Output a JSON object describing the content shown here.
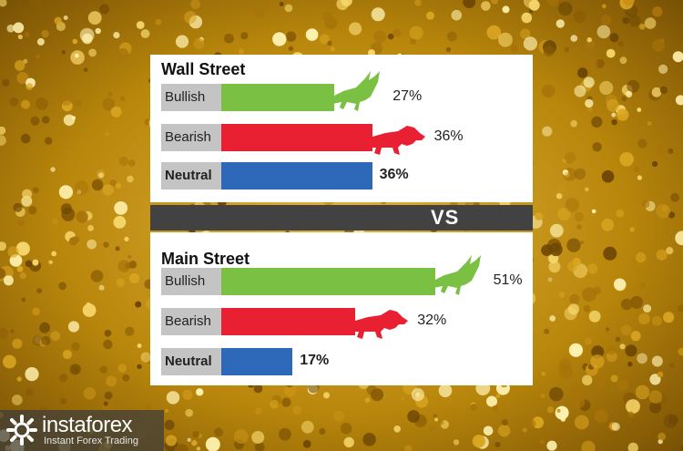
{
  "chart_data": [
    {
      "type": "bar",
      "title": "Wall Street",
      "categories": [
        "Bullish",
        "Bearish",
        "Neutral"
      ],
      "values": [
        27,
        36,
        36
      ],
      "value_labels": [
        "27%",
        "36%",
        "36%"
      ],
      "unit": "%",
      "colors": [
        "#7ac143",
        "#e82032",
        "#2e68b8"
      ]
    },
    {
      "type": "bar",
      "title": "Main Street",
      "categories": [
        "Bullish",
        "Bearish",
        "Neutral"
      ],
      "values": [
        51,
        32,
        17
      ],
      "value_labels": [
        "51%",
        "32%",
        "17%"
      ],
      "unit": "%",
      "colors": [
        "#7ac143",
        "#e82032",
        "#2e68b8"
      ]
    }
  ],
  "separator": {
    "label": "VS"
  },
  "brand": {
    "name": "instaforex",
    "tagline": "Instant Forex Trading",
    "icon": "instaforex-logo-icon"
  },
  "background": {
    "description_icon": "gold-glitter-background",
    "color": "#c9960f"
  }
}
